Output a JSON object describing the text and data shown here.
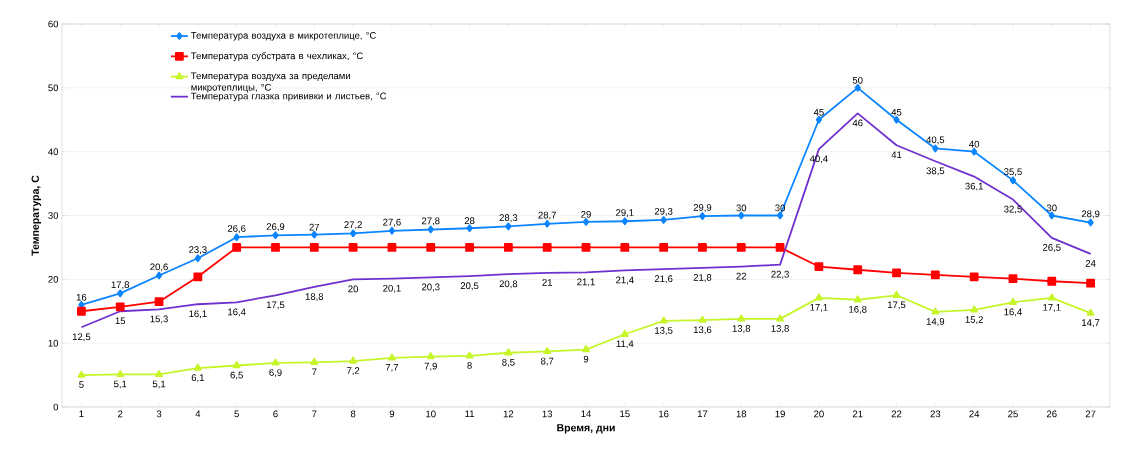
{
  "chart_data": {
    "type": "line",
    "xlabel": "Время, дни",
    "ylabel": "Температура, С",
    "categories": [
      "1",
      "2",
      "3",
      "4",
      "5",
      "6",
      "7",
      "8",
      "9",
      "10",
      "11",
      "12",
      "13",
      "14",
      "15",
      "16",
      "17",
      "18",
      "19",
      "20",
      "21",
      "22",
      "23",
      "24",
      "25",
      "26",
      "27"
    ],
    "ylim": [
      0,
      60
    ],
    "yticks": [
      0,
      10,
      20,
      30,
      40,
      50,
      60
    ],
    "grid": "y",
    "legend": "top left",
    "series": [
      {
        "name": "Температура воздуха в микротеплице, °C",
        "color": "#0a84ff",
        "marker": "diamond",
        "values": [
          16,
          17.8,
          20.6,
          23.3,
          26.6,
          26.9,
          27,
          27.2,
          27.6,
          27.8,
          28,
          28.3,
          28.7,
          29,
          29.1,
          29.3,
          29.9,
          30,
          30,
          45,
          50,
          45,
          40.5,
          40,
          35.5,
          30,
          28.9
        ],
        "value_labels": [
          "16",
          "17,8",
          "20,6",
          "23,3",
          "26,6",
          "26,9",
          "27",
          "27,2",
          "27,6",
          "27,8",
          "28",
          "28,3",
          "28,7",
          "29",
          "29,1",
          "29,3",
          "29,9",
          "30",
          "30",
          "45",
          "50",
          "45",
          "40,5",
          "40",
          "35,5",
          "30",
          "28,9"
        ]
      },
      {
        "name": "Температура субстрата в чехликах, °C",
        "color": "#ff0000",
        "marker": "square",
        "values": [
          15,
          15.7,
          16.5,
          20.4,
          25,
          25,
          25,
          25,
          25,
          25,
          25,
          25,
          25,
          25,
          25,
          25,
          25,
          25,
          25,
          22,
          21.5,
          21,
          20.7,
          20.4,
          20.1,
          19.7,
          19.4
        ]
      },
      {
        "name": "Температура воздуха за пределами микротеплицы, °C",
        "color": "#c6f52a",
        "marker": "triangle",
        "values": [
          5,
          5.1,
          5.1,
          6.1,
          6.5,
          6.9,
          7,
          7.2,
          7.7,
          7.9,
          8,
          8.5,
          8.7,
          9,
          11.4,
          13.5,
          13.6,
          13.8,
          13.8,
          17.1,
          16.8,
          17.5,
          14.9,
          15.2,
          16.4,
          17.1,
          14.7
        ],
        "value_labels": [
          "5",
          "5,1",
          "5,1",
          "6,1",
          "6,5",
          "6,9",
          "7",
          "7,2",
          "7,7",
          "7,9",
          "8",
          "8,5",
          "8,7",
          "9",
          "11,4",
          "13,5",
          "13,6",
          "13,8",
          "13,8",
          "17,1",
          "16,8",
          "17,5",
          "14,9",
          "15,2",
          "16,4",
          "17,1",
          "14,7"
        ]
      },
      {
        "name": "Температура глазка прививки и листьев, °C",
        "color": "#7030d0",
        "marker": "none",
        "values": [
          12.5,
          15,
          15.3,
          16.1,
          16.4,
          17.5,
          18.8,
          20,
          20.1,
          20.3,
          20.5,
          20.8,
          21,
          21.1,
          21.4,
          21.6,
          21.8,
          22,
          22.3,
          40.4,
          46,
          41,
          38.5,
          36.1,
          32.5,
          26.5,
          24
        ],
        "value_labels": [
          "12,5",
          "15",
          "15,3",
          "16,1",
          "16,4",
          "17,5",
          "18,8",
          "20",
          "20,1",
          "20,3",
          "20,5",
          "20,8",
          "21",
          "21,1",
          "21,4",
          "21,6",
          "21,8",
          "22",
          "22,3",
          "40,4",
          "46",
          "41",
          "38,5",
          "36,1",
          "32,5",
          "26,5",
          "24"
        ]
      }
    ]
  }
}
